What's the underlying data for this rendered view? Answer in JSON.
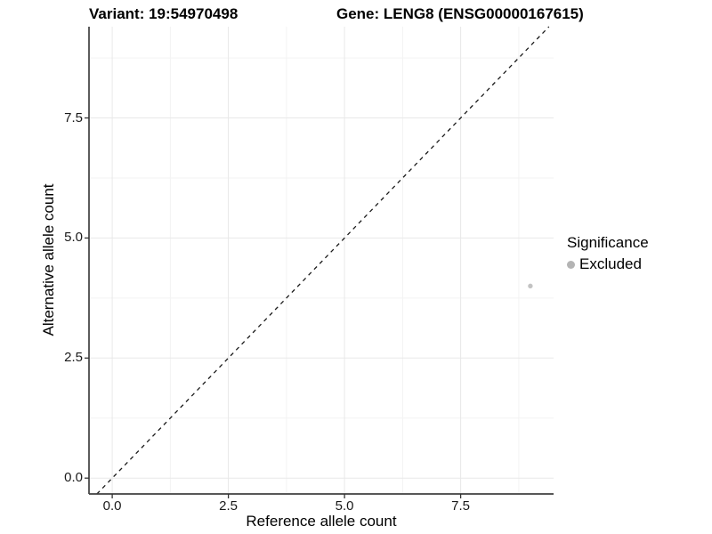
{
  "chart_data": {
    "type": "scatter",
    "title_left": "Variant: 19:54970498",
    "title_right": "Gene: LENG8 (ENSG00000167615)",
    "xlabel": "Reference allele count",
    "ylabel": "Alternative allele count",
    "xlim": [
      -0.5,
      9.5
    ],
    "ylim": [
      -0.33,
      9.4
    ],
    "x_tick_values": [
      0,
      2.5,
      5,
      7.5
    ],
    "x_tick_labels": [
      "0.0",
      "2.5",
      "5.0",
      "7.5"
    ],
    "y_tick_values": [
      0,
      2.5,
      5,
      7.5
    ],
    "y_tick_labels": [
      "0.0",
      "2.5",
      "5.0",
      "7.5"
    ],
    "x_minor_gridlines": [
      1.25,
      3.75,
      6.25,
      8.75
    ],
    "y_minor_gridlines": [
      1.25,
      3.75,
      6.25,
      8.75
    ],
    "series": [
      {
        "name": "Excluded",
        "color": "#c3c3c3",
        "points": [
          {
            "x": 9,
            "y": 4
          }
        ]
      }
    ],
    "reference_line": {
      "kind": "identity",
      "linetype": "dashed",
      "color": "#1a1a1a"
    },
    "grid": "major+minor",
    "legend": {
      "position": "right",
      "title": "Significance",
      "items": [
        {
          "label": "Excluded",
          "color": "#b4b4b4"
        }
      ]
    },
    "colors": {
      "background": "#ffffff",
      "grid_major": "#e8e8e8",
      "grid_minor": "#f3f3f3",
      "axis": "#404040",
      "tick": "#333333",
      "text": "#000000"
    }
  }
}
